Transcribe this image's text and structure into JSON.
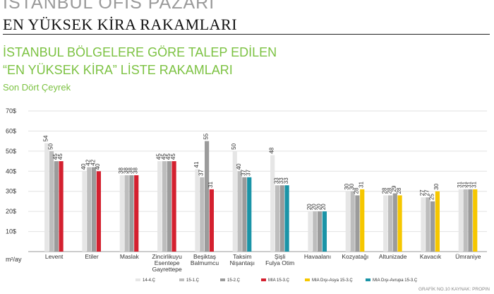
{
  "header": {
    "top_title": "İSTANBUL OFİS PAZARI",
    "main_title": "EN YÜKSEK KİRA RAKAMLARI"
  },
  "chart_data": {
    "type": "bar",
    "title": "İSTANBUL BÖLGELERE GÖRE TALEP EDİLEN\n“EN YÜKSEK KİRA” LİSTE RAKAMLARI",
    "title_line1": "İSTANBUL BÖLGELERE GÖRE TALEP EDİLEN",
    "title_line2": "“EN YÜKSEK KİRA” LİSTE RAKAMLARI",
    "subtitle": "Son Dört Çeyrek",
    "ylabel": "m²/ay",
    "ylim": [
      0,
      70
    ],
    "yticks": [
      "70$",
      "60$",
      "50$",
      "40$",
      "30$",
      "20$",
      "10$"
    ],
    "grid": true,
    "legend_position": "bottom",
    "source": "GRAFİK NO.10 KAYNAK: PROPIN",
    "categories": [
      "Levent",
      "Etiler",
      "Maslak",
      "Zincirlikuyu\nEsentepe\nGayrettepe",
      "Beşiktaş\nBalmumcu",
      "Taksim\nNişantaşı",
      "Şişli\nFulya Otim",
      "Havaalanı",
      "Kozyatağı",
      "Altunizade",
      "Kavacık",
      "Ümraniye"
    ],
    "series": [
      {
        "name": "14-4.Ç",
        "color": "#e6e6e6",
        "values": [
          54,
          40,
          38,
          45,
          41,
          50,
          48,
          20,
          30,
          28,
          27,
          31
        ]
      },
      {
        "name": "15-1.Ç",
        "color": "#bdbdbd",
        "values": [
          50,
          42,
          38,
          45,
          37,
          40,
          33,
          20,
          30,
          28,
          27,
          31
        ]
      },
      {
        "name": "15-2.Ç",
        "color": "#9b9b9b",
        "values": [
          45,
          42,
          38,
          45,
          55,
          37,
          33,
          20,
          28,
          29,
          25,
          31
        ]
      },
      {
        "name": "MIA 15-3.Ç",
        "color": "#d4202f",
        "values": [
          45,
          40,
          38,
          45,
          31,
          null,
          null,
          null,
          null,
          null,
          null,
          null
        ]
      },
      {
        "name": "MIA Dışı-Asya 15-3.Ç",
        "color": "#f6c700",
        "values": [
          null,
          null,
          null,
          null,
          null,
          null,
          null,
          null,
          31,
          28,
          30,
          31
        ]
      },
      {
        "name": "MIA Dışı-Avrupa 15-3.Ç",
        "color": "#1a94a7",
        "values": [
          null,
          null,
          null,
          null,
          null,
          37,
          33,
          20,
          null,
          null,
          null,
          null
        ]
      }
    ]
  }
}
